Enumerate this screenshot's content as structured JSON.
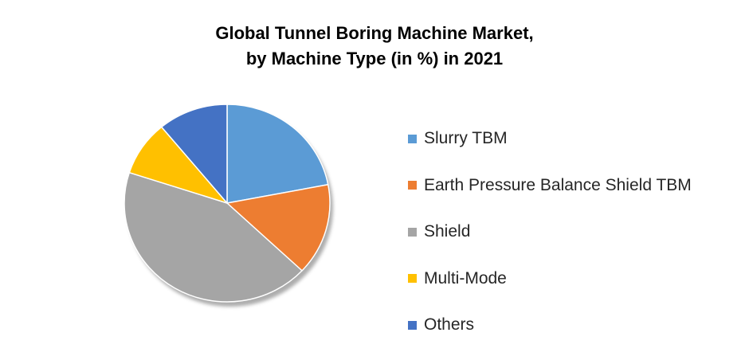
{
  "chart_data": {
    "type": "pie",
    "title_lines": [
      "Global Tunnel Boring Machine Market,",
      "by Machine Type (in %) in 2021"
    ],
    "slices": [
      {
        "label": "Slurry TBM",
        "value": 22,
        "color": "#5B9BD5"
      },
      {
        "label": "Earth Pressure Balance Shield TBM",
        "value": 15,
        "color": "#ED7D31"
      },
      {
        "label": "Shield",
        "value": 43,
        "color": "#A5A5A5"
      },
      {
        "label": "Multi-Mode",
        "value": 9,
        "color": "#FFC000"
      },
      {
        "label": "Others",
        "value": 11,
        "color": "#4472C4"
      }
    ],
    "legend_position": "right",
    "start_angle": "12 o'clock",
    "direction": "clockwise"
  }
}
